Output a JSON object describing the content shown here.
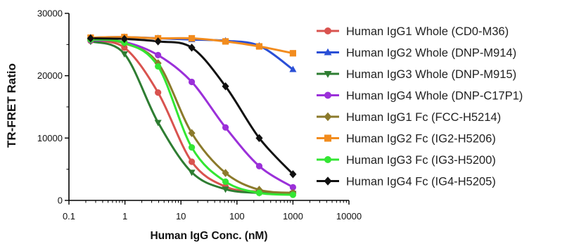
{
  "chart_data": {
    "type": "line",
    "title": "",
    "xlabel": "Human IgG Conc. (nM)",
    "ylabel": "TR-FRET Ratio",
    "x_scale": "log",
    "xlim": [
      0.1,
      10000
    ],
    "ylim": [
      0,
      30000
    ],
    "x_ticks": [
      0.1,
      1,
      10,
      100,
      1000,
      10000
    ],
    "x_tick_labels": [
      "0.1",
      "1",
      "10",
      "100",
      "1000",
      "10000"
    ],
    "y_ticks": [
      0,
      10000,
      20000,
      30000
    ],
    "y_tick_labels": [
      "0",
      "10000",
      "20000",
      "30000"
    ],
    "grid": false,
    "legend_position": "right",
    "x": [
      0.244,
      0.977,
      3.9,
      15.6,
      62.5,
      250,
      1000
    ],
    "series": [
      {
        "name": "Human IgG1 Whole (CD0-M36)",
        "color": "#d9534f",
        "marker": "circle",
        "values": [
          25600,
          24500,
          17300,
          6200,
          2200,
          1400,
          1200
        ]
      },
      {
        "name": "Human IgG2 Whole (DNP-M914)",
        "color": "#2a4fd6",
        "marker": "triangle-up",
        "values": [
          26100,
          26200,
          26000,
          25800,
          25600,
          24800,
          21000
        ]
      },
      {
        "name": "Human IgG3 Whole (DNP-M915)",
        "color": "#2e7d32",
        "marker": "triangle-down",
        "values": [
          25500,
          23500,
          12500,
          4500,
          1800,
          1200,
          1100
        ]
      },
      {
        "name": "Human IgG4 Whole (DNP-C17P1)",
        "color": "#9b30d9",
        "marker": "circle",
        "values": [
          25700,
          25400,
          23300,
          19000,
          11700,
          5500,
          2100
        ]
      },
      {
        "name": "Human IgG1 Fc (FCC-H5214)",
        "color": "#8b7a2b",
        "marker": "diamond",
        "values": [
          25900,
          25200,
          22000,
          10800,
          4400,
          1700,
          1200
        ]
      },
      {
        "name": "Human IgG2 Fc (IG2-H5206)",
        "color": "#f28c1e",
        "marker": "square",
        "values": [
          26100,
          26200,
          26000,
          26000,
          25500,
          24700,
          23600
        ]
      },
      {
        "name": "Human IgG3 Fc (IG3-H5200)",
        "color": "#33e633",
        "marker": "circle",
        "values": [
          25800,
          25300,
          21500,
          8500,
          3000,
          1200,
          900
        ]
      },
      {
        "name": "Human IgG4 Fc (IG4-H5205)",
        "color": "#111111",
        "marker": "diamond",
        "values": [
          26000,
          25900,
          25500,
          24500,
          18300,
          10000,
          4200
        ]
      }
    ]
  }
}
